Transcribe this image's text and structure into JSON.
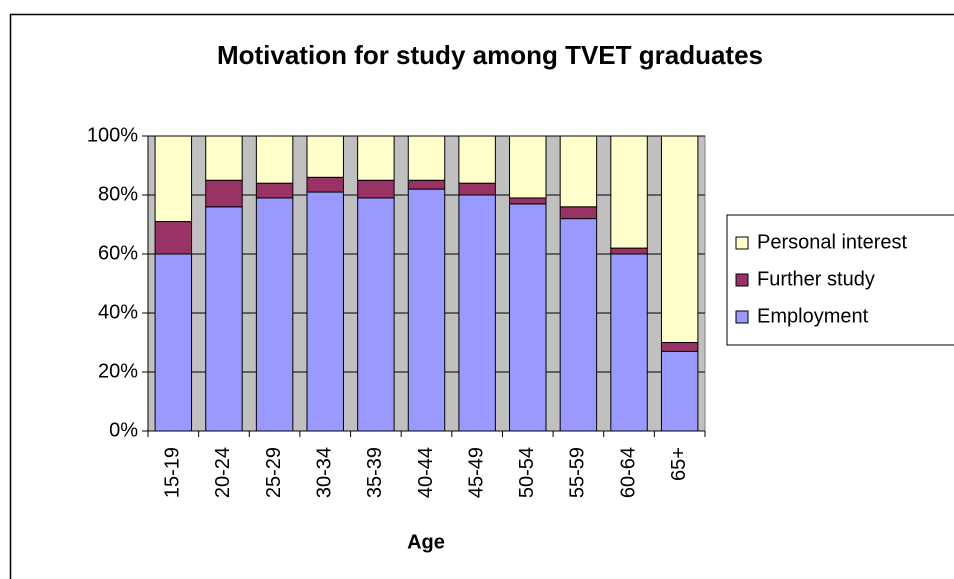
{
  "chart_data": {
    "type": "bar",
    "stacked": true,
    "title": "Motivation for study among TVET graduates",
    "x_label": "Age",
    "categories": [
      "15-19",
      "20-24",
      "25-29",
      "30-34",
      "35-39",
      "40-44",
      "45-49",
      "50-54",
      "55-59",
      "60-64",
      "65+"
    ],
    "series": [
      {
        "name": "Employment",
        "color": "#9999ff",
        "values": [
          60,
          76,
          79,
          81,
          79,
          82,
          80,
          77,
          72,
          60,
          27
        ]
      },
      {
        "name": "Further study",
        "color": "#993366",
        "values": [
          11,
          9,
          5,
          5,
          6,
          3,
          4,
          2,
          4,
          2,
          3
        ]
      },
      {
        "name": "Personal interest",
        "color": "#ffffcc",
        "values": [
          29,
          15,
          16,
          14,
          15,
          15,
          16,
          21,
          24,
          38,
          70
        ]
      }
    ],
    "ylim": [
      0,
      100
    ],
    "yticks": [
      {
        "value": 0,
        "label": "0%"
      },
      {
        "value": 20,
        "label": "20%"
      },
      {
        "value": 40,
        "label": "40%"
      },
      {
        "value": 60,
        "label": "60%"
      },
      {
        "value": 80,
        "label": "80%"
      },
      {
        "value": 100,
        "label": "100%"
      }
    ],
    "grid": true,
    "legend": "right"
  }
}
